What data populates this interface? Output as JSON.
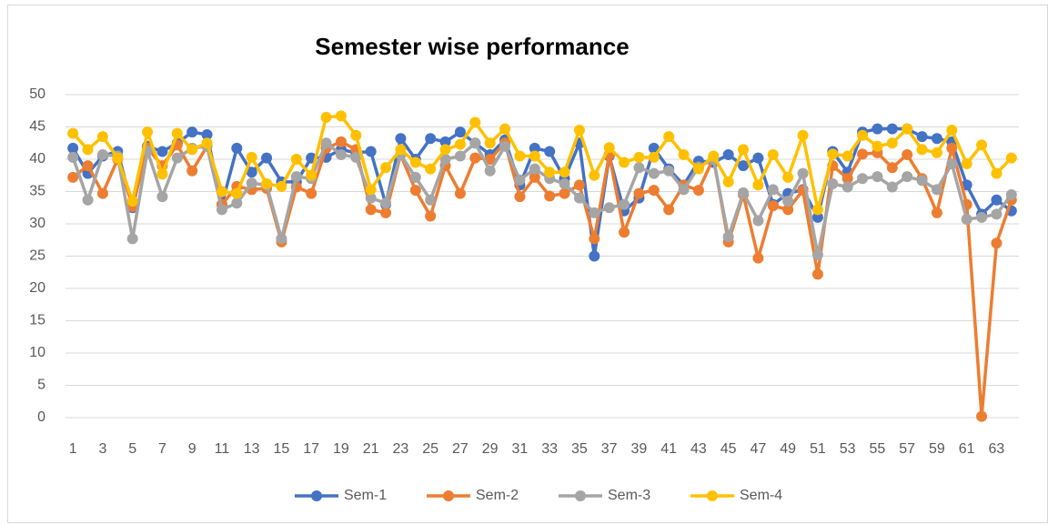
{
  "chart_data": {
    "type": "line",
    "title": "Semester wise performance",
    "x": [
      1,
      2,
      3,
      4,
      5,
      6,
      7,
      8,
      9,
      10,
      11,
      12,
      13,
      14,
      15,
      16,
      17,
      18,
      19,
      20,
      21,
      22,
      23,
      24,
      25,
      26,
      27,
      28,
      29,
      30,
      31,
      32,
      33,
      34,
      35,
      36,
      37,
      38,
      39,
      40,
      41,
      42,
      43,
      44,
      45,
      46,
      47,
      48,
      49,
      50,
      51,
      52,
      53,
      54,
      55,
      56,
      57,
      58,
      59,
      60,
      61,
      62,
      63,
      64
    ],
    "xlim": [
      0.5,
      64.5
    ],
    "xticks": [
      1,
      3,
      5,
      7,
      9,
      11,
      13,
      15,
      17,
      19,
      21,
      23,
      25,
      27,
      29,
      31,
      33,
      35,
      37,
      39,
      41,
      43,
      45,
      47,
      49,
      51,
      53,
      55,
      57,
      59,
      61,
      63
    ],
    "ylim": [
      0,
      50
    ],
    "yticks": [
      0,
      5,
      10,
      15,
      20,
      25,
      30,
      35,
      40,
      45,
      50
    ],
    "grid": true,
    "legend": "bottom",
    "series": [
      {
        "name": "Sem-1",
        "color": "#4472c4",
        "values": [
          41.7,
          37.8,
          40.5,
          41.2,
          32.5,
          42,
          41.2,
          42.5,
          44.2,
          43.8,
          33,
          41.7,
          38,
          40.2,
          36.5,
          36.5,
          40.2,
          40.3,
          41.5,
          41,
          41.2,
          33,
          43.2,
          40,
          43.2,
          42.7,
          44.2,
          42.5,
          40.7,
          43,
          36,
          41.7,
          41.2,
          37,
          42.5,
          25,
          40.5,
          32,
          34,
          41.7,
          38.5,
          36,
          39.7,
          39.5,
          40.7,
          39,
          40.2,
          33,
          34.7,
          35.3,
          31,
          41.2,
          38,
          44.2,
          44.7,
          44.7,
          44.7,
          43.5,
          43.2,
          42.7,
          36,
          31.5,
          33.7,
          32
        ]
      },
      {
        "name": "Sem-2",
        "color": "#ed7d31",
        "values": [
          37.2,
          39,
          34.7,
          40,
          32.7,
          41.7,
          39,
          42.2,
          38.2,
          42,
          33,
          35.8,
          35.3,
          35.5,
          27.2,
          35.7,
          34.7,
          41.7,
          42.7,
          41.5,
          32.2,
          31.7,
          40.7,
          35.2,
          31.2,
          39,
          34.7,
          40.2,
          40,
          42.5,
          34.2,
          37.2,
          34.3,
          34.7,
          36,
          27.7,
          40.7,
          28.7,
          34.7,
          35.2,
          32.2,
          36,
          35.2,
          40.2,
          27.2,
          34.5,
          24.7,
          32.8,
          32.2,
          35.2,
          22.2,
          39,
          37,
          40.8,
          41,
          38.7,
          40.7,
          37,
          31.7,
          41.7,
          33,
          0.2,
          27,
          33.7
        ]
      },
      {
        "name": "Sem-3",
        "color": "#a5a5a5",
        "values": [
          40.3,
          33.7,
          40.7,
          40.5,
          27.7,
          41.3,
          34.2,
          40.2,
          41.7,
          42,
          32.2,
          33.2,
          36.3,
          36,
          27.7,
          37.3,
          37,
          42.5,
          40.7,
          40.3,
          34,
          33.2,
          40.7,
          37.2,
          33.7,
          40,
          40.5,
          42.5,
          38.2,
          42,
          36.8,
          38.5,
          37,
          36.2,
          34,
          31.7,
          32.5,
          33,
          38.7,
          37.8,
          38.2,
          35.3,
          38.8,
          40,
          28,
          34.8,
          30.5,
          35.3,
          33.5,
          37.8,
          25.2,
          36.2,
          35.7,
          37,
          37.3,
          35.7,
          37.3,
          36.7,
          35.3,
          39.3,
          30.7,
          31,
          31.5,
          34.5
        ]
      },
      {
        "name": "Sem-4",
        "color": "#ffc000",
        "values": [
          44,
          41.5,
          43.5,
          40.2,
          33.5,
          44.2,
          37.7,
          44,
          41.5,
          42.5,
          35,
          34.7,
          40.3,
          36.2,
          35.8,
          40,
          37.5,
          46.5,
          46.7,
          43.7,
          35.3,
          38.7,
          41.5,
          39.5,
          38.5,
          41.5,
          42.3,
          45.7,
          42.5,
          44.7,
          40.5,
          40.5,
          38,
          38,
          44.5,
          37.5,
          41.8,
          39.5,
          40.3,
          40.3,
          43.5,
          40.7,
          38.5,
          40.5,
          36.5,
          41.5,
          36,
          40.7,
          37.2,
          43.7,
          32.2,
          40.8,
          40.5,
          43.7,
          42,
          42.5,
          44.7,
          41.5,
          41,
          44.5,
          39.3,
          42.2,
          37.8,
          40.2
        ]
      }
    ]
  }
}
